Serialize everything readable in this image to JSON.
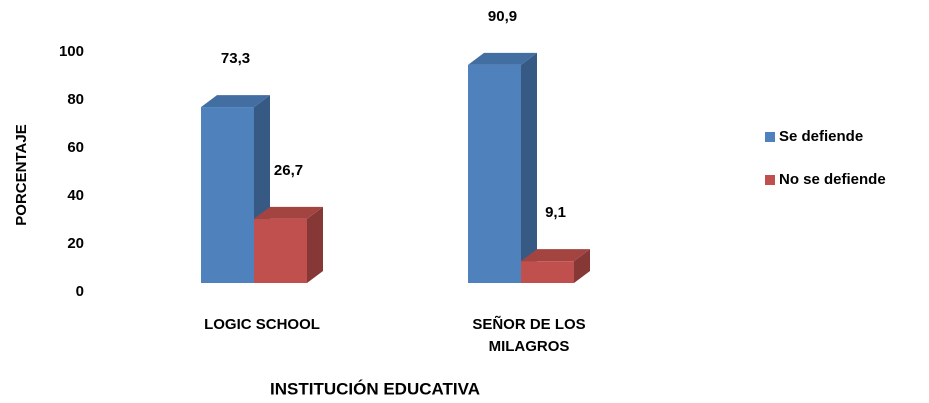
{
  "chart_data": {
    "type": "bar3d",
    "y_label": "PORCENTAJE",
    "x_label": "INSTITUCIÓN EDUCATIVA",
    "categories": [
      "LOGIC SCHOOL",
      "SEÑOR DE LOS MILAGROS"
    ],
    "series": [
      {
        "name": "Se defiende",
        "color": "#4f81bd",
        "values": [
          73.3,
          90.9
        ],
        "value_labels": [
          "73,3",
          "90,9"
        ]
      },
      {
        "name": "No se defiende",
        "color": "#c0504d",
        "values": [
          26.7,
          9.1
        ],
        "value_labels": [
          "26,7",
          "9,1"
        ]
      }
    ],
    "ylim": [
      0,
      100
    ],
    "yticks": [
      0,
      20,
      40,
      60,
      80,
      100
    ],
    "grid": false,
    "legend": "right"
  }
}
